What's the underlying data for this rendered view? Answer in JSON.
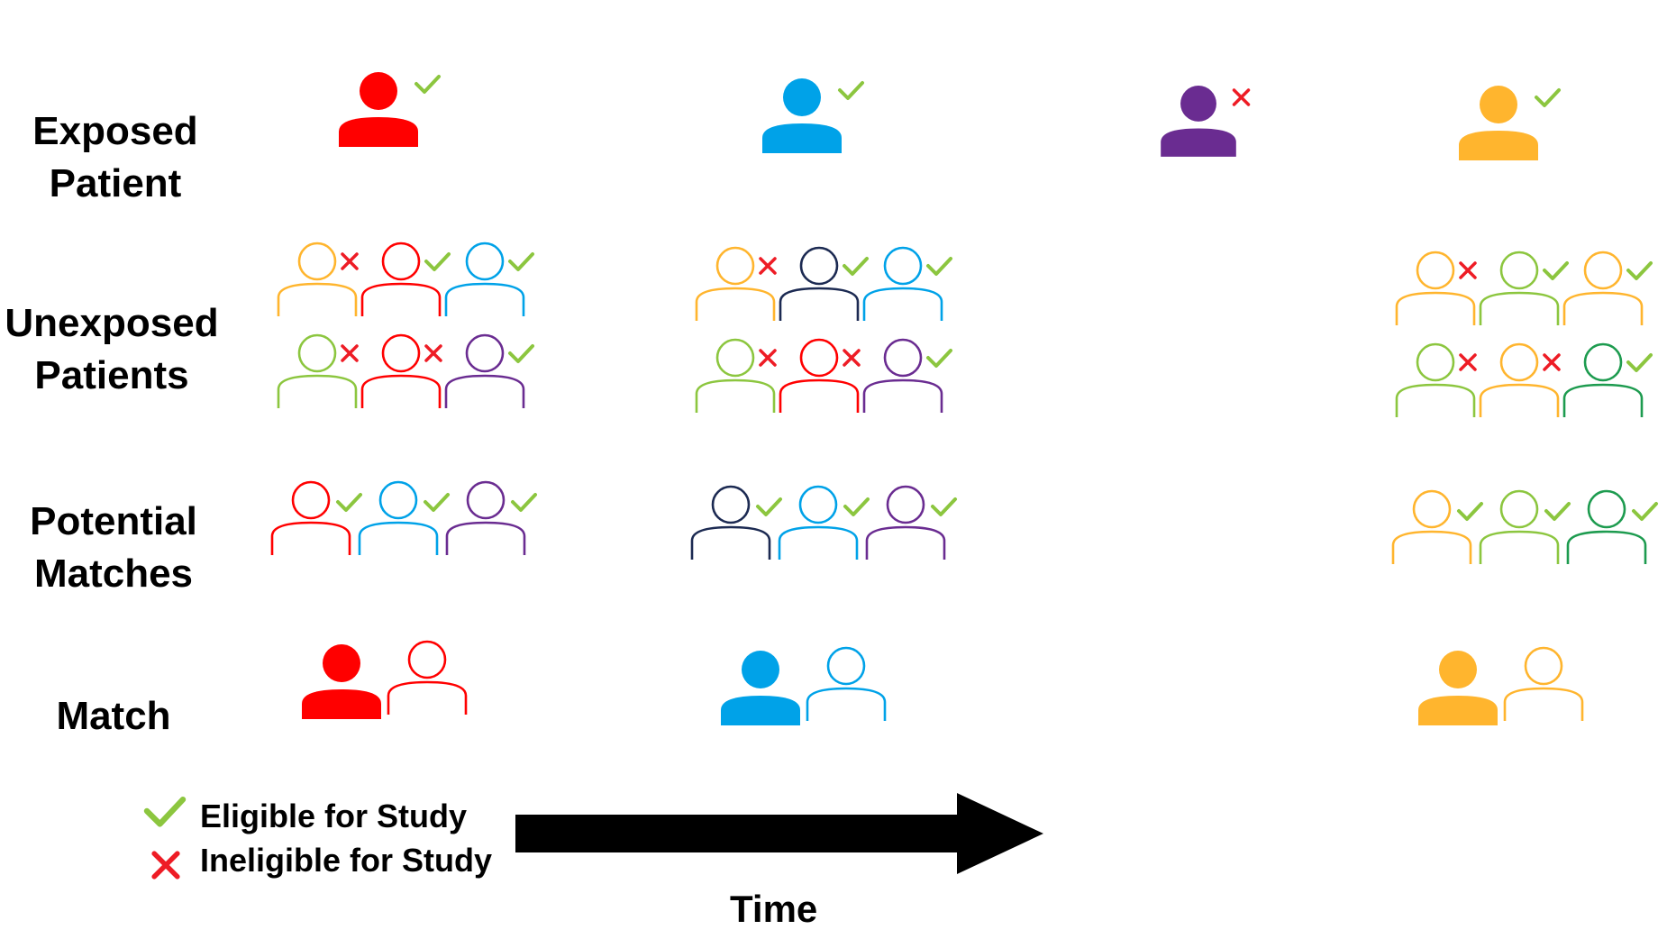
{
  "colors": {
    "red": "#ff0000",
    "blue": "#00a2e8",
    "purple": "#6a2c91",
    "gold": "#ffb52e",
    "green": "#8cc63f",
    "navy": "#1c2a52",
    "darkgreen": "#1d9b4f",
    "check": "#8cc63f",
    "cross": "#ee1c25",
    "arrow": "#000000"
  },
  "row_labels": {
    "exposed": [
      "Exposed",
      "Patient"
    ],
    "unexposed": [
      "Unexposed",
      "Patients"
    ],
    "potential": [
      "Potential",
      "Matches"
    ],
    "match": [
      "Match"
    ]
  },
  "legend": {
    "eligible": "Eligible for Study",
    "ineligible": "Ineligible for Study",
    "eligible_icon": "checkmark-icon",
    "ineligible_icon": "cross-icon"
  },
  "time_label": "Time",
  "columns": [
    {
      "exposed": {
        "color": "red",
        "eligible": true
      },
      "unexposed": [
        {
          "color": "gold",
          "eligible": false
        },
        {
          "color": "red",
          "eligible": true
        },
        {
          "color": "blue",
          "eligible": true
        },
        {
          "color": "green",
          "eligible": false
        },
        {
          "color": "red",
          "eligible": false
        },
        {
          "color": "purple",
          "eligible": true
        }
      ],
      "potential": [
        {
          "color": "red",
          "eligible": true
        },
        {
          "color": "blue",
          "eligible": true
        },
        {
          "color": "purple",
          "eligible": true
        }
      ],
      "match": {
        "exposed": "red",
        "unexposed": "red"
      }
    },
    {
      "exposed": {
        "color": "blue",
        "eligible": true
      },
      "unexposed": [
        {
          "color": "gold",
          "eligible": false
        },
        {
          "color": "navy",
          "eligible": true
        },
        {
          "color": "blue",
          "eligible": true
        },
        {
          "color": "green",
          "eligible": false
        },
        {
          "color": "red",
          "eligible": false
        },
        {
          "color": "purple",
          "eligible": true
        }
      ],
      "potential": [
        {
          "color": "navy",
          "eligible": true
        },
        {
          "color": "blue",
          "eligible": true
        },
        {
          "color": "purple",
          "eligible": true
        }
      ],
      "match": {
        "exposed": "blue",
        "unexposed": "blue"
      }
    },
    {
      "exposed": {
        "color": "purple",
        "eligible": false
      },
      "unexposed": [],
      "potential": [],
      "match": null
    },
    {
      "exposed": {
        "color": "gold",
        "eligible": true
      },
      "unexposed": [
        {
          "color": "gold",
          "eligible": false
        },
        {
          "color": "green",
          "eligible": true
        },
        {
          "color": "gold",
          "eligible": true
        },
        {
          "color": "green",
          "eligible": false
        },
        {
          "color": "gold",
          "eligible": false
        },
        {
          "color": "darkgreen",
          "eligible": true
        }
      ],
      "potential": [
        {
          "color": "gold",
          "eligible": true
        },
        {
          "color": "green",
          "eligible": true
        },
        {
          "color": "darkgreen",
          "eligible": true
        }
      ],
      "match": {
        "exposed": "gold",
        "unexposed": "gold"
      }
    }
  ]
}
